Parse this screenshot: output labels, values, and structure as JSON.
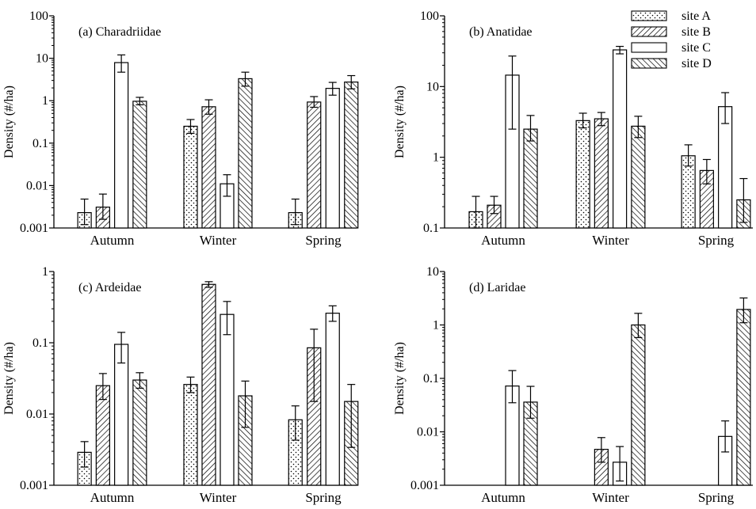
{
  "figure": {
    "legend": [
      {
        "name": "site A",
        "pattern": "dots"
      },
      {
        "name": "site B",
        "pattern": "hatch-fwd"
      },
      {
        "name": "site C",
        "pattern": "open"
      },
      {
        "name": "site D",
        "pattern": "hatch-back"
      }
    ],
    "legend_placement": "top-right of panel (b)"
  },
  "chart_data": [
    {
      "type": "bar",
      "title": "(a) Charadriidae",
      "ylabel": "Density (#/ha)",
      "yscale": "log",
      "ylim": [
        0.001,
        100
      ],
      "yticks": [
        "0.001",
        "0.01",
        "0.1",
        "1",
        "10",
        "100"
      ],
      "categories": [
        "Autumn",
        "Winter",
        "Spring"
      ],
      "series": [
        {
          "name": "site A",
          "values": [
            0.0023,
            0.25,
            0.0023
          ],
          "err_low": [
            0.0012,
            0.17,
            0.0012
          ],
          "err_high": [
            0.0048,
            0.36,
            0.0048
          ]
        },
        {
          "name": "site B",
          "values": [
            0.0031,
            0.72,
            0.93
          ],
          "err_low": [
            0.0016,
            0.48,
            0.7
          ],
          "err_high": [
            0.0063,
            1.05,
            1.25
          ]
        },
        {
          "name": "site C",
          "values": [
            7.9,
            0.011,
            1.95
          ],
          "err_low": [
            4.7,
            0.0056,
            1.35
          ],
          "err_high": [
            12.0,
            0.018,
            2.7
          ]
        },
        {
          "name": "site D",
          "values": [
            0.97,
            3.3,
            2.75
          ],
          "err_low": [
            0.8,
            2.2,
            1.9
          ],
          "err_high": [
            1.2,
            4.7,
            3.9
          ]
        }
      ]
    },
    {
      "type": "bar",
      "title": "(b) Anatidae",
      "ylabel": "Density (#/ha)",
      "yscale": "log",
      "ylim": [
        0.1,
        100
      ],
      "yticks": [
        "0.1",
        "1",
        "10",
        "100"
      ],
      "categories": [
        "Autumn",
        "Winter",
        "Spring"
      ],
      "series": [
        {
          "name": "site A",
          "values": [
            0.17,
            3.3,
            1.05
          ],
          "err_low": [
            0.1,
            2.6,
            0.75
          ],
          "err_high": [
            0.28,
            4.2,
            1.5
          ]
        },
        {
          "name": "site B",
          "values": [
            0.21,
            3.5,
            0.65
          ],
          "err_low": [
            0.16,
            2.8,
            0.42
          ],
          "err_high": [
            0.28,
            4.3,
            0.93
          ]
        },
        {
          "name": "site C",
          "values": [
            14.5,
            33.0,
            5.2
          ],
          "err_low": [
            2.5,
            29.0,
            3.0
          ],
          "err_high": [
            27.0,
            37.0,
            8.2
          ]
        },
        {
          "name": "site D",
          "values": [
            2.5,
            2.75,
            0.25
          ],
          "err_low": [
            1.7,
            1.9,
            0.12
          ],
          "err_high": [
            3.9,
            3.8,
            0.5
          ]
        }
      ]
    },
    {
      "type": "bar",
      "title": "(c) Ardeidae",
      "ylabel": "Density (#/ha)",
      "yscale": "log",
      "ylim": [
        0.001,
        1
      ],
      "yticks": [
        "0.001",
        "0.01",
        "0.1",
        "1"
      ],
      "categories": [
        "Autumn",
        "Winter",
        "Spring"
      ],
      "series": [
        {
          "name": "site A",
          "values": [
            0.0029,
            0.026,
            0.0083
          ],
          "err_low": [
            0.0018,
            0.02,
            0.0043
          ],
          "err_high": [
            0.0041,
            0.033,
            0.013
          ]
        },
        {
          "name": "site B",
          "values": [
            0.025,
            0.66,
            0.085
          ],
          "err_low": [
            0.016,
            0.6,
            0.015
          ],
          "err_high": [
            0.037,
            0.72,
            0.155
          ]
        },
        {
          "name": "site C",
          "values": [
            0.095,
            0.25,
            0.26
          ],
          "err_low": [
            0.052,
            0.13,
            0.2
          ],
          "err_high": [
            0.14,
            0.38,
            0.33
          ]
        },
        {
          "name": "site D",
          "values": [
            0.03,
            0.018,
            0.015
          ],
          "err_low": [
            0.023,
            0.0065,
            0.0034
          ],
          "err_high": [
            0.038,
            0.029,
            0.026
          ]
        }
      ]
    },
    {
      "type": "bar",
      "title": "(d) Laridae",
      "ylabel": "Density (#/ha)",
      "yscale": "log",
      "ylim": [
        0.001,
        10
      ],
      "yticks": [
        "0.001",
        "0.01",
        "0.1",
        "1",
        "10"
      ],
      "categories": [
        "Autumn",
        "Winter",
        "Spring"
      ],
      "series": [
        {
          "name": "site A",
          "values": [
            null,
            null,
            null
          ],
          "err_low": [
            null,
            null,
            null
          ],
          "err_high": [
            null,
            null,
            null
          ]
        },
        {
          "name": "site B",
          "values": [
            null,
            0.0047,
            null
          ],
          "err_low": [
            null,
            0.0027,
            null
          ],
          "err_high": [
            null,
            0.0078,
            null
          ]
        },
        {
          "name": "site C",
          "values": [
            0.072,
            0.0027,
            0.0082
          ],
          "err_low": [
            0.035,
            0.0012,
            0.0042
          ],
          "err_high": [
            0.14,
            0.0053,
            0.016
          ]
        },
        {
          "name": "site D",
          "values": [
            0.036,
            1.0,
            1.95
          ],
          "err_low": [
            0.018,
            0.58,
            1.1
          ],
          "err_high": [
            0.071,
            1.65,
            3.2
          ]
        }
      ]
    }
  ]
}
